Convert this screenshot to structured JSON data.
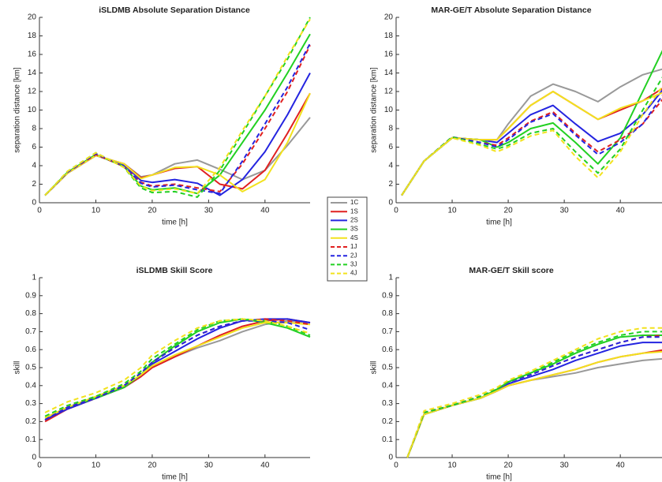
{
  "chart_data": [
    {
      "type": "line",
      "title": "iSLDMB Absolute Separation Distance",
      "xlabel": "time [h]",
      "ylabel": "separation distance [km]",
      "x": [
        1,
        5,
        10,
        15,
        18,
        20,
        24,
        28,
        32,
        36,
        40,
        44,
        48
      ],
      "xlim": [
        0,
        48
      ],
      "xticks": [
        0,
        10,
        20,
        30,
        40
      ],
      "ylim": [
        0,
        20
      ],
      "yticks": [
        0,
        2,
        4,
        6,
        8,
        10,
        12,
        14,
        16,
        18,
        20
      ],
      "series": [
        {
          "values": [
            0.8,
            3.2,
            5.1,
            4.2,
            2.8,
            3.0,
            4.2,
            4.6,
            3.6,
            2.5,
            3.5,
            6.2,
            9.2
          ]
        },
        {
          "values": [
            0.8,
            3.2,
            5.1,
            4.2,
            2.7,
            3.0,
            3.7,
            3.9,
            2.0,
            1.5,
            3.5,
            7.5,
            11.8
          ]
        },
        {
          "values": [
            0.8,
            3.2,
            5.1,
            4.1,
            2.4,
            2.2,
            2.5,
            2.1,
            0.8,
            2.5,
            5.5,
            9.5,
            14.0
          ]
        },
        {
          "values": [
            0.8,
            3.3,
            5.2,
            3.9,
            1.8,
            1.4,
            1.6,
            1.0,
            3.0,
            6.5,
            10.0,
            14.0,
            18.2
          ]
        },
        {
          "values": [
            0.8,
            3.2,
            5.1,
            4.2,
            2.6,
            3.0,
            3.8,
            3.9,
            3.0,
            1.2,
            2.5,
            6.5,
            11.8
          ]
        },
        {
          "values": [
            0.8,
            3.3,
            5.2,
            3.9,
            2.2,
            1.8,
            2.0,
            1.6,
            1.2,
            4.2,
            8.0,
            12.0,
            17.0
          ]
        },
        {
          "values": [
            0.8,
            3.3,
            5.3,
            3.9,
            2.1,
            1.7,
            1.9,
            1.4,
            1.0,
            4.5,
            8.5,
            12.5,
            17.2
          ]
        },
        {
          "values": [
            0.8,
            3.4,
            5.4,
            3.8,
            1.6,
            1.1,
            1.2,
            0.6,
            3.5,
            7.5,
            11.5,
            15.5,
            20.0
          ]
        },
        {
          "values": [
            0.8,
            3.4,
            5.4,
            3.8,
            1.8,
            1.3,
            1.5,
            1.0,
            3.8,
            7.8,
            11.5,
            15.8,
            19.8
          ]
        }
      ]
    },
    {
      "type": "line",
      "title": "MAR-GE/T Absolute Separation Distance",
      "xlabel": "time [h]",
      "ylabel": "separation distance [km]",
      "x": [
        1,
        5,
        10,
        15,
        18,
        20,
        24,
        28,
        32,
        36,
        40,
        44,
        48
      ],
      "xlim": [
        0,
        48
      ],
      "xticks": [
        0,
        10,
        20,
        30,
        40
      ],
      "ylim": [
        0,
        20
      ],
      "yticks": [
        0,
        2,
        4,
        6,
        8,
        10,
        12,
        14,
        16,
        18,
        20
      ],
      "series": [
        {
          "values": [
            0.8,
            4.5,
            7.0,
            6.8,
            6.8,
            8.5,
            11.5,
            12.8,
            12.0,
            10.9,
            12.5,
            13.8,
            14.5
          ]
        },
        {
          "values": [
            0.8,
            4.5,
            7.0,
            6.8,
            6.8,
            8.0,
            10.5,
            12.0,
            10.5,
            9.0,
            10.0,
            11.0,
            12.5
          ]
        },
        {
          "values": [
            0.8,
            4.5,
            7.0,
            6.8,
            6.5,
            7.5,
            9.5,
            10.5,
            8.5,
            6.6,
            7.5,
            9.5,
            12.5
          ]
        },
        {
          "values": [
            0.8,
            4.5,
            7.0,
            6.8,
            6.0,
            6.5,
            8.0,
            8.6,
            6.5,
            4.2,
            7.0,
            12.0,
            17.0
          ]
        },
        {
          "values": [
            0.8,
            4.5,
            7.0,
            6.8,
            6.8,
            8.0,
            10.5,
            12.0,
            10.5,
            9.0,
            10.2,
            11.0,
            12.0
          ]
        },
        {
          "values": [
            0.8,
            4.5,
            7.1,
            6.5,
            6.2,
            7.0,
            8.8,
            9.8,
            7.5,
            5.5,
            6.8,
            8.5,
            11.5
          ]
        },
        {
          "values": [
            0.8,
            4.5,
            7.1,
            6.5,
            6.0,
            6.8,
            8.7,
            9.6,
            7.3,
            5.2,
            6.5,
            8.5,
            12.0
          ]
        },
        {
          "values": [
            0.8,
            4.5,
            7.1,
            6.3,
            5.8,
            6.2,
            7.5,
            8.0,
            5.5,
            3.2,
            5.8,
            10.0,
            14.0
          ]
        },
        {
          "values": [
            0.8,
            4.5,
            7.0,
            6.2,
            5.5,
            6.0,
            7.2,
            7.8,
            5.0,
            2.7,
            5.5,
            9.5,
            13.0
          ]
        }
      ]
    },
    {
      "type": "line",
      "title": "iSLDMB Skill Score",
      "xlabel": "time [h]",
      "ylabel": "skill",
      "x": [
        1,
        5,
        10,
        15,
        18,
        20,
        24,
        28,
        32,
        36,
        40,
        44,
        48
      ],
      "xlim": [
        0,
        48
      ],
      "xticks": [
        0,
        10,
        20,
        30,
        40
      ],
      "ylim": [
        0,
        1
      ],
      "yticks": [
        0,
        0.1,
        0.2,
        0.3,
        0.4,
        0.5,
        0.6,
        0.7,
        0.8,
        0.9,
        1
      ],
      "series": [
        {
          "values": [
            0.21,
            0.27,
            0.33,
            0.39,
            0.45,
            0.5,
            0.56,
            0.61,
            0.65,
            0.7,
            0.74,
            0.76,
            0.75
          ]
        },
        {
          "values": [
            0.2,
            0.27,
            0.33,
            0.39,
            0.45,
            0.5,
            0.56,
            0.62,
            0.68,
            0.73,
            0.76,
            0.77,
            0.75
          ]
        },
        {
          "values": [
            0.21,
            0.27,
            0.33,
            0.39,
            0.46,
            0.52,
            0.59,
            0.66,
            0.72,
            0.76,
            0.77,
            0.77,
            0.75
          ]
        },
        {
          "values": [
            0.22,
            0.28,
            0.33,
            0.39,
            0.46,
            0.53,
            0.62,
            0.7,
            0.75,
            0.77,
            0.75,
            0.72,
            0.67
          ]
        },
        {
          "values": [
            0.22,
            0.28,
            0.34,
            0.4,
            0.46,
            0.51,
            0.57,
            0.62,
            0.67,
            0.72,
            0.75,
            0.75,
            0.74
          ]
        },
        {
          "values": [
            0.21,
            0.28,
            0.33,
            0.4,
            0.47,
            0.53,
            0.61,
            0.68,
            0.73,
            0.76,
            0.77,
            0.76,
            0.74
          ]
        },
        {
          "values": [
            0.21,
            0.28,
            0.33,
            0.4,
            0.47,
            0.53,
            0.61,
            0.68,
            0.73,
            0.76,
            0.76,
            0.75,
            0.71
          ]
        },
        {
          "values": [
            0.23,
            0.29,
            0.34,
            0.41,
            0.48,
            0.55,
            0.63,
            0.71,
            0.76,
            0.77,
            0.76,
            0.73,
            0.68
          ]
        },
        {
          "values": [
            0.25,
            0.31,
            0.36,
            0.43,
            0.5,
            0.57,
            0.65,
            0.72,
            0.76,
            0.77,
            0.76,
            0.73,
            0.69
          ]
        }
      ]
    },
    {
      "type": "line",
      "title": "MAR-GE/T Skill score",
      "xlabel": "time [h]",
      "ylabel": "skill",
      "x": [
        2,
        5,
        10,
        15,
        18,
        20,
        24,
        28,
        32,
        36,
        40,
        44,
        48
      ],
      "xlim": [
        0,
        48
      ],
      "xticks": [
        0,
        10,
        20,
        30,
        40
      ],
      "ylim": [
        0,
        1
      ],
      "yticks": [
        0,
        0.1,
        0.2,
        0.3,
        0.4,
        0.5,
        0.6,
        0.7,
        0.8,
        0.9,
        1
      ],
      "series": [
        {
          "values": [
            0,
            0.24,
            0.29,
            0.33,
            0.37,
            0.4,
            0.43,
            0.45,
            0.47,
            0.5,
            0.52,
            0.54,
            0.55
          ]
        },
        {
          "values": [
            0,
            0.24,
            0.29,
            0.33,
            0.37,
            0.4,
            0.43,
            0.46,
            0.49,
            0.53,
            0.56,
            0.58,
            0.6
          ]
        },
        {
          "values": [
            0,
            0.24,
            0.29,
            0.33,
            0.37,
            0.41,
            0.45,
            0.49,
            0.54,
            0.58,
            0.62,
            0.64,
            0.64
          ]
        },
        {
          "values": [
            0,
            0.24,
            0.29,
            0.33,
            0.38,
            0.42,
            0.47,
            0.52,
            0.58,
            0.63,
            0.67,
            0.68,
            0.68
          ]
        },
        {
          "values": [
            0,
            0.24,
            0.29,
            0.33,
            0.37,
            0.4,
            0.43,
            0.46,
            0.49,
            0.53,
            0.56,
            0.58,
            0.59
          ]
        },
        {
          "values": [
            0,
            0.25,
            0.29,
            0.34,
            0.38,
            0.42,
            0.46,
            0.51,
            0.56,
            0.6,
            0.64,
            0.67,
            0.68
          ]
        },
        {
          "values": [
            0,
            0.25,
            0.29,
            0.34,
            0.38,
            0.42,
            0.46,
            0.51,
            0.56,
            0.6,
            0.64,
            0.67,
            0.67
          ]
        },
        {
          "values": [
            0,
            0.25,
            0.29,
            0.34,
            0.38,
            0.42,
            0.47,
            0.53,
            0.59,
            0.64,
            0.68,
            0.7,
            0.7
          ]
        },
        {
          "values": [
            0,
            0.26,
            0.3,
            0.35,
            0.39,
            0.43,
            0.48,
            0.54,
            0.6,
            0.66,
            0.7,
            0.72,
            0.72
          ]
        }
      ]
    }
  ],
  "legend": [
    {
      "name": "1C",
      "color": "#999999",
      "dash": false
    },
    {
      "name": "1S",
      "color": "#e02020",
      "dash": false
    },
    {
      "name": "2S",
      "color": "#2424e0",
      "dash": false
    },
    {
      "name": "3S",
      "color": "#22d022",
      "dash": false
    },
    {
      "name": "4S",
      "color": "#f2e21e",
      "dash": false
    },
    {
      "name": "1J",
      "color": "#e02020",
      "dash": true
    },
    {
      "name": "2J",
      "color": "#2424e0",
      "dash": true
    },
    {
      "name": "3J",
      "color": "#22d022",
      "dash": true
    },
    {
      "name": "4J",
      "color": "#f2e21e",
      "dash": true
    }
  ]
}
